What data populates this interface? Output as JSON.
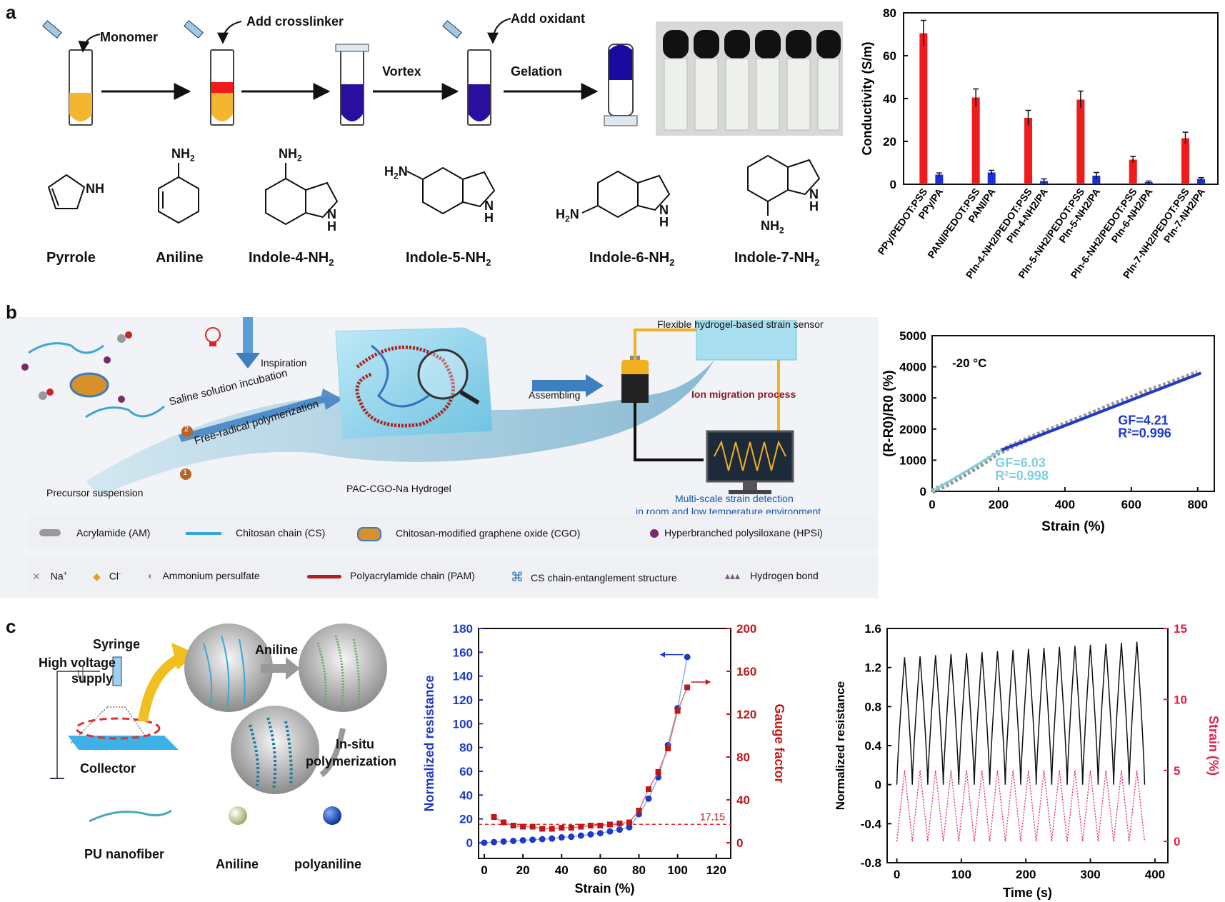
{
  "panel_labels": {
    "a": "a",
    "b": "b",
    "c": "c"
  },
  "panel_a": {
    "steps": {
      "monomer": "Monomer",
      "crosslinker": "Add crosslinker",
      "vortex": "Vortex",
      "oxidant": "Add oxidant",
      "gelation": "Gelation"
    },
    "molecules": {
      "pyrrole": "Pyrrole",
      "aniline": "Aniline",
      "indole4": "Indole-4-NH",
      "indole5": "Indole-5-NH",
      "indole6": "Indole-6-NH",
      "indole7": "Indole-7-NH",
      "sub2": "2",
      "nh": "NH",
      "nh2": "NH",
      "h2n": "H",
      "n": "N",
      "h": "H"
    }
  },
  "panel_b": {
    "inspiration": "Inspiration",
    "step1": "Free-radical polymerization",
    "step2": "Saline solution incubation",
    "num1": "1",
    "num2": "2",
    "precursor": "Precursor suspension",
    "hydrogel": "PAC-CGO-Na Hydrogel",
    "assembling": "Assembling",
    "sensor_title": "Flexible hydrogel-based strain sensor",
    "ion_migration": "Ion migration process",
    "detection_line1": "Multi-scale strain detection",
    "detection_line2": "in room and low temperature environment",
    "legend_row1": [
      "Acrylamide (AM)",
      "Chitosan chain (CS)",
      "Chitosan-modified graphene oxide (CGO)",
      "Hyperbranched polysiloxane (HPSi)"
    ],
    "legend_row2": [
      "Na",
      "Cl",
      "Ammonium persulfate",
      "Polyacrylamide chain (PAM)",
      "CS chain-entanglement structure",
      "Hydrogen bond"
    ],
    "colors": {
      "blue_chain": "#3aa6d8",
      "red_chain": "#b02020",
      "accent": "#2a6ebb"
    }
  },
  "panel_c": {
    "syringe": "Syringe",
    "supply_line1": "High voltage",
    "supply_line2": "supply",
    "collector": "Collector",
    "aniline_label": "Aniline",
    "insitu_line1": "In-situ",
    "insitu_line2": "polymerization",
    "legend": {
      "pu": "PU nanofiber",
      "aniline": "Aniline",
      "polyaniline": "polyaniline"
    }
  },
  "chart_data": [
    {
      "type": "bar",
      "id": "conductivity",
      "categories": [
        "PPy/PEDOT:PSS",
        "PPy/PA",
        "PANI/PEDOT:PSS",
        "PANI/PA",
        "PIn-4-NH2/PEDOT:PSS",
        "PIn-4-NH2/PA",
        "PIn-5-NH2/PEDOT:PSS",
        "PIn-5-NH2/PA",
        "PIn-6-NH2/PEDOT:PSS",
        "PIn-6-NH2/PA",
        "PIn-7-NH2/PEDOT:PSS",
        "PIn-7-NH2/PA"
      ],
      "values": [
        70.5,
        4.5,
        40.5,
        5.5,
        31,
        1.5,
        39.5,
        4,
        11.5,
        1,
        21.5,
        2.5
      ],
      "errors": [
        6,
        0.8,
        4,
        1,
        3.5,
        1,
        4,
        1.5,
        1.5,
        0.5,
        2.8,
        0.6
      ],
      "colors": [
        "#ee1c1c",
        "#1b2fd6"
      ],
      "ylabel": "Conductivity (S/m)",
      "ylim": [
        0,
        80
      ],
      "yticks": [
        0,
        20,
        40,
        60,
        80
      ]
    },
    {
      "type": "line",
      "id": "strain_20C",
      "annotation": "-20 °C",
      "xlabel": "Strain (%)",
      "ylabel": "(R-R0)/R0 (%)",
      "xlim": [
        0,
        850
      ],
      "ylim": [
        0,
        5000
      ],
      "xticks": [
        0,
        200,
        400,
        600,
        800
      ],
      "yticks": [
        0,
        1000,
        2000,
        3000,
        4000,
        5000
      ],
      "series": [
        {
          "x": [
            0,
            50,
            100,
            150,
            200,
            250,
            300,
            350,
            400,
            450,
            500,
            550,
            600,
            650,
            700,
            750,
            800
          ],
          "y": [
            0,
            250,
            560,
            880,
            1250,
            1500,
            1730,
            1950,
            2150,
            2360,
            2580,
            2800,
            3000,
            3220,
            3400,
            3600,
            3800
          ]
        }
      ],
      "fit_low": {
        "gf": "GF=6.03",
        "r2": "R²=0.998",
        "x": [
          0,
          210
        ],
        "y": [
          0,
          1330
        ],
        "color": "#7fd0e0"
      },
      "fit_high": {
        "gf": "GF=4.21",
        "r2": "R²=0.996",
        "x": [
          210,
          810
        ],
        "y": [
          1330,
          3800
        ],
        "color": "#1f39c8"
      }
    },
    {
      "type": "scatter",
      "id": "gauge_factor",
      "xlabel": "Strain (%)",
      "ylabel_left": "Normalized resistance",
      "ylabel_right": "Gauge factor",
      "xlim": [
        0,
        120
      ],
      "ylim_left": [
        0,
        180
      ],
      "ylim_right": [
        0,
        200
      ],
      "xticks": [
        0,
        20,
        40,
        60,
        80,
        100,
        120
      ],
      "yticks_left": [
        0,
        20,
        40,
        60,
        80,
        100,
        120,
        140,
        160,
        180
      ],
      "yticks_right": [
        0,
        40,
        80,
        120,
        160,
        200
      ],
      "reference_value": "17.15",
      "series": [
        {
          "name": "Normalized resistance",
          "axis": "left",
          "color": "#1f39c8",
          "x": [
            0,
            5,
            10,
            15,
            20,
            25,
            30,
            35,
            40,
            45,
            50,
            55,
            60,
            65,
            70,
            75,
            80,
            85,
            90,
            95,
            100,
            105
          ],
          "y": [
            0,
            0.5,
            1,
            1.5,
            2,
            2.5,
            3,
            3.5,
            4.5,
            5,
            6,
            7,
            8,
            9.5,
            11,
            13,
            24,
            37,
            55,
            82,
            113,
            156
          ]
        },
        {
          "name": "Gauge factor",
          "axis": "right",
          "color": "#c01818",
          "x": [
            5,
            10,
            15,
            20,
            25,
            30,
            35,
            40,
            45,
            50,
            55,
            60,
            65,
            70,
            75,
            80,
            85,
            90,
            95,
            100,
            105
          ],
          "y": [
            24,
            19,
            16,
            15,
            15,
            13,
            13,
            14,
            14,
            15,
            16,
            16,
            17,
            18,
            19,
            30,
            50,
            66,
            88,
            123,
            145
          ]
        }
      ]
    },
    {
      "type": "line",
      "id": "cyclic",
      "xlabel": "Time (s)",
      "ylabel_left": "Normalized resistance",
      "ylabel_right": "Strain (%)",
      "xlim": [
        -15,
        420
      ],
      "ylim_left": [
        -0.8,
        1.6
      ],
      "ylim_right": [
        -1.5,
        15
      ],
      "xticks": [
        0,
        100,
        200,
        300,
        400
      ],
      "yticks_left": [
        -0.8,
        -0.4,
        0,
        0.4,
        0.8,
        1.2,
        1.6
      ],
      "yticks_right": [
        0,
        5,
        10,
        15
      ],
      "cycles": 16,
      "period": 24,
      "series": [
        {
          "name": "Normalized resistance",
          "color": "#111111",
          "min": 0.0,
          "max": 1.3,
          "drift": 0.17
        },
        {
          "name": "Strain",
          "color": "#e0204a",
          "min": 0,
          "max": 5
        }
      ]
    }
  ]
}
